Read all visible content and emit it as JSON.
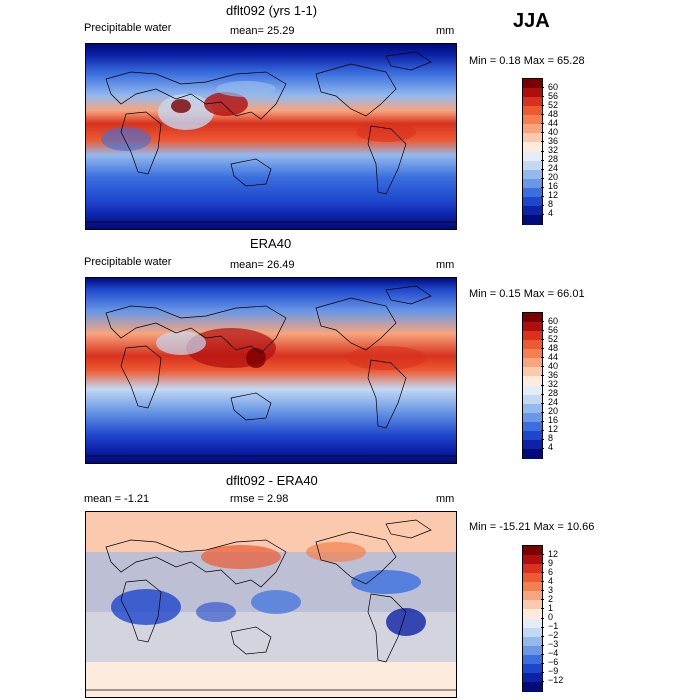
{
  "season": "JJA",
  "panels": [
    {
      "title": "dflt092 (yrs 1-1)",
      "field": "Precipitable water",
      "mean_text": "mean=  25.29",
      "units": "mm",
      "minmax_text": "Min =   0.18 Max =  65.28",
      "colorbar": {
        "labels": [
          "60",
          "56",
          "52",
          "48",
          "44",
          "40",
          "36",
          "32",
          "28",
          "24",
          "20",
          "16",
          "12",
          "8",
          "4"
        ],
        "colors": [
          "#7a0000",
          "#b00e0e",
          "#d8321e",
          "#ec5a32",
          "#f4804f",
          "#f7a57e",
          "#fbc9ae",
          "#fdebdd",
          "#e4ecf8",
          "#c3d8f3",
          "#94b9ed",
          "#6a98e6",
          "#3b6fdf",
          "#1e46cc",
          "#0c22a8",
          "#000a78"
        ]
      }
    },
    {
      "title": "ERA40",
      "field": "Precipitable water",
      "mean_text": "mean=  26.49",
      "units": "mm",
      "minmax_text": "Min =   0.15 Max =  66.01",
      "colorbar": {
        "labels": [
          "60",
          "56",
          "52",
          "48",
          "44",
          "40",
          "36",
          "32",
          "28",
          "24",
          "20",
          "16",
          "12",
          "8",
          "4"
        ],
        "colors": [
          "#7a0000",
          "#b00e0e",
          "#d8321e",
          "#ec5a32",
          "#f4804f",
          "#f7a57e",
          "#fbc9ae",
          "#fdebdd",
          "#e4ecf8",
          "#c3d8f3",
          "#94b9ed",
          "#6a98e6",
          "#3b6fdf",
          "#1e46cc",
          "#0c22a8",
          "#000a78"
        ]
      }
    },
    {
      "title": "dflt092 - ERA40",
      "mean_text": "mean =   -1.21",
      "rmse_text": "rmse =    2.98",
      "units": "mm",
      "minmax_text": "Min = -15.21 Max =  10.66",
      "colorbar": {
        "labels": [
          "12",
          "9",
          "6",
          "4",
          "3",
          "2",
          "1",
          "0",
          "−1",
          "−2",
          "−3",
          "−4",
          "−6",
          "−9",
          "−12"
        ],
        "colors": [
          "#7a0000",
          "#b00e0e",
          "#d8321e",
          "#ec5a32",
          "#f4804f",
          "#f7a57e",
          "#fbc9ae",
          "#fdebdd",
          "#e4ecf8",
          "#c3d8f3",
          "#94b9ed",
          "#6a98e6",
          "#3b6fdf",
          "#1e46cc",
          "#0c22a8",
          "#000a78"
        ]
      }
    }
  ]
}
